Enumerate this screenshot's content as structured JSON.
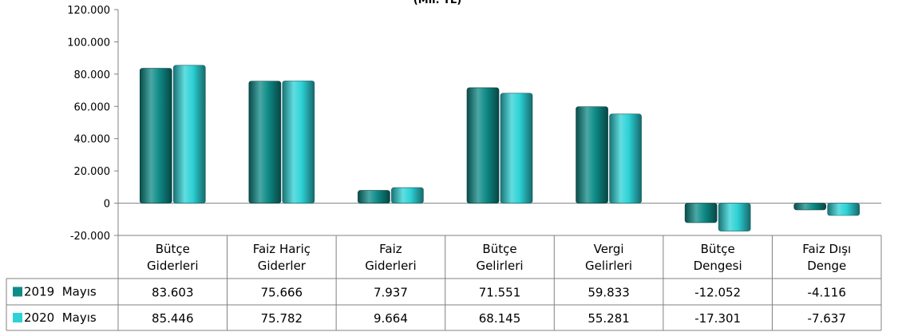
{
  "chart_data": {
    "type": "bar",
    "title": "(Mil. TL)",
    "categories": [
      [
        "Bütçe",
        "Giderleri"
      ],
      [
        "Faiz Hariç",
        "Giderler"
      ],
      [
        "Faiz",
        "Giderleri"
      ],
      [
        "Bütçe",
        "Gelirleri"
      ],
      [
        "Vergi",
        "Gelirleri"
      ],
      [
        "Bütçe",
        "Dengesi"
      ],
      [
        "Faiz Dışı",
        "Denge"
      ]
    ],
    "series": [
      {
        "name": "2019  Mayıs",
        "color": "#0E8B87",
        "values": [
          83603,
          75666,
          7937,
          71551,
          59833,
          -12052,
          -4116
        ],
        "labels": [
          "83.603",
          "75.666",
          "7.937",
          "71.551",
          "59.833",
          "-12.052",
          "-4.116"
        ]
      },
      {
        "name": "2020  Mayıs",
        "color": "#2DD2D6",
        "values": [
          85446,
          75782,
          9664,
          68145,
          55281,
          -17301,
          -7637
        ],
        "labels": [
          "85.446",
          "75.782",
          "9.664",
          "68.145",
          "55.281",
          "-17.301",
          "-7.637"
        ]
      }
    ],
    "ylim": [
      -20000,
      120000
    ],
    "yticks": [
      -20000,
      0,
      20000,
      40000,
      60000,
      80000,
      100000,
      120000
    ],
    "ytick_labels": [
      "-20.000",
      "0",
      "20.000",
      "40.000",
      "60.000",
      "80.000",
      "100.000",
      "120.000"
    ],
    "grid": false,
    "legend": "data-table-left"
  }
}
